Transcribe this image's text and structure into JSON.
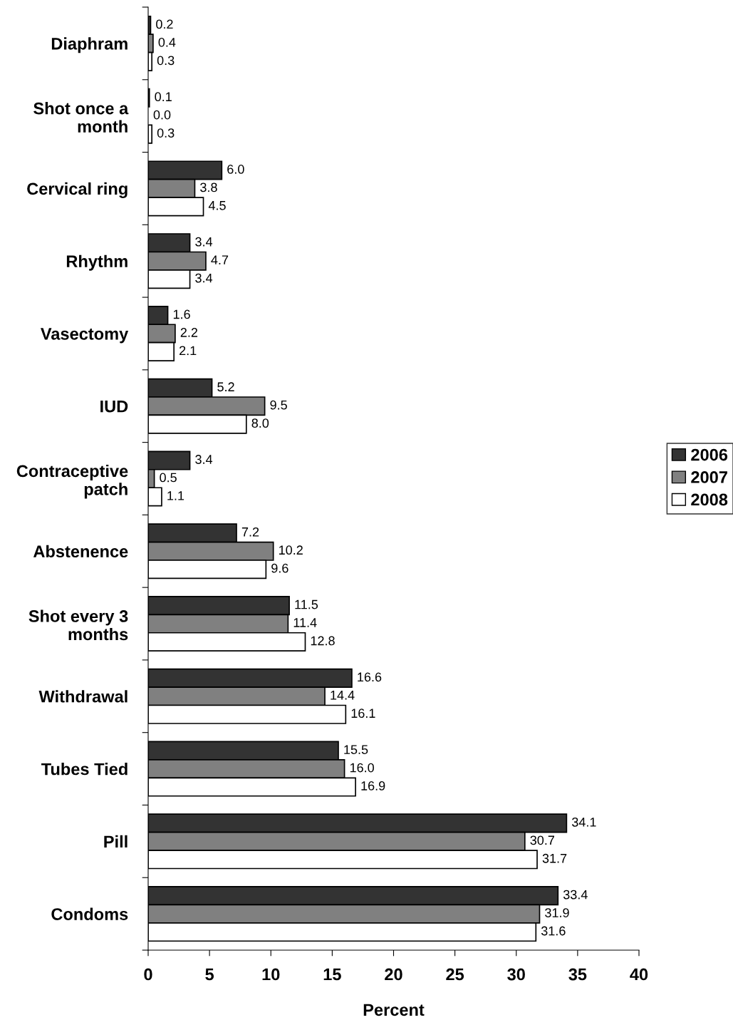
{
  "chart_data": {
    "type": "bar",
    "orientation": "horizontal",
    "xlabel": "Percent",
    "categories": [
      "Diaphram",
      "Shot once a month",
      "Cervical ring",
      "Rhythm",
      "Vasectomy",
      "IUD",
      "Contraceptive patch",
      "Abstenence",
      "Shot every 3 months",
      "Withdrawal",
      "Tubes Tied",
      "Pill",
      "Condoms"
    ],
    "series": [
      {
        "name": "2006",
        "color": "#333333",
        "values": [
          0.2,
          0.1,
          6.0,
          3.4,
          1.6,
          5.2,
          3.4,
          7.2,
          11.5,
          16.6,
          15.5,
          34.1,
          33.4
        ],
        "value_labels": [
          "0.2",
          "0.1",
          "6.0",
          "3.4",
          "1.6",
          "5.2",
          "3.4",
          "7.2",
          "11.5",
          "16.6",
          "15.5",
          "34.1",
          "33.4"
        ]
      },
      {
        "name": "2007",
        "color": "#808080",
        "values": [
          0.4,
          0.0,
          3.8,
          4.7,
          2.2,
          9.5,
          0.5,
          10.2,
          11.4,
          14.4,
          16.0,
          30.7,
          31.9
        ],
        "value_labels": [
          "0.4",
          "0.0",
          "3.8",
          "4.7",
          "2.2",
          "9.5",
          "0.5",
          "10.2",
          "11.4",
          "14.4",
          "16.0",
          "30.7",
          "31.9"
        ]
      },
      {
        "name": "2008",
        "color": "#ffffff",
        "values": [
          0.3,
          0.3,
          4.5,
          3.4,
          2.1,
          8.0,
          1.1,
          9.6,
          12.8,
          16.1,
          16.9,
          31.7,
          31.6
        ],
        "value_labels": [
          "0.3",
          "0.3",
          "4.5",
          "3.4",
          "2.1",
          "8.0",
          "1.1",
          "9.6",
          "12.8",
          "16.1",
          "16.9",
          "31.7",
          "31.6"
        ]
      }
    ],
    "xlim": [
      0,
      40
    ],
    "xticks": [
      0,
      5,
      10,
      15,
      20,
      25,
      30,
      35,
      40
    ],
    "legend": "right",
    "grid": false
  }
}
